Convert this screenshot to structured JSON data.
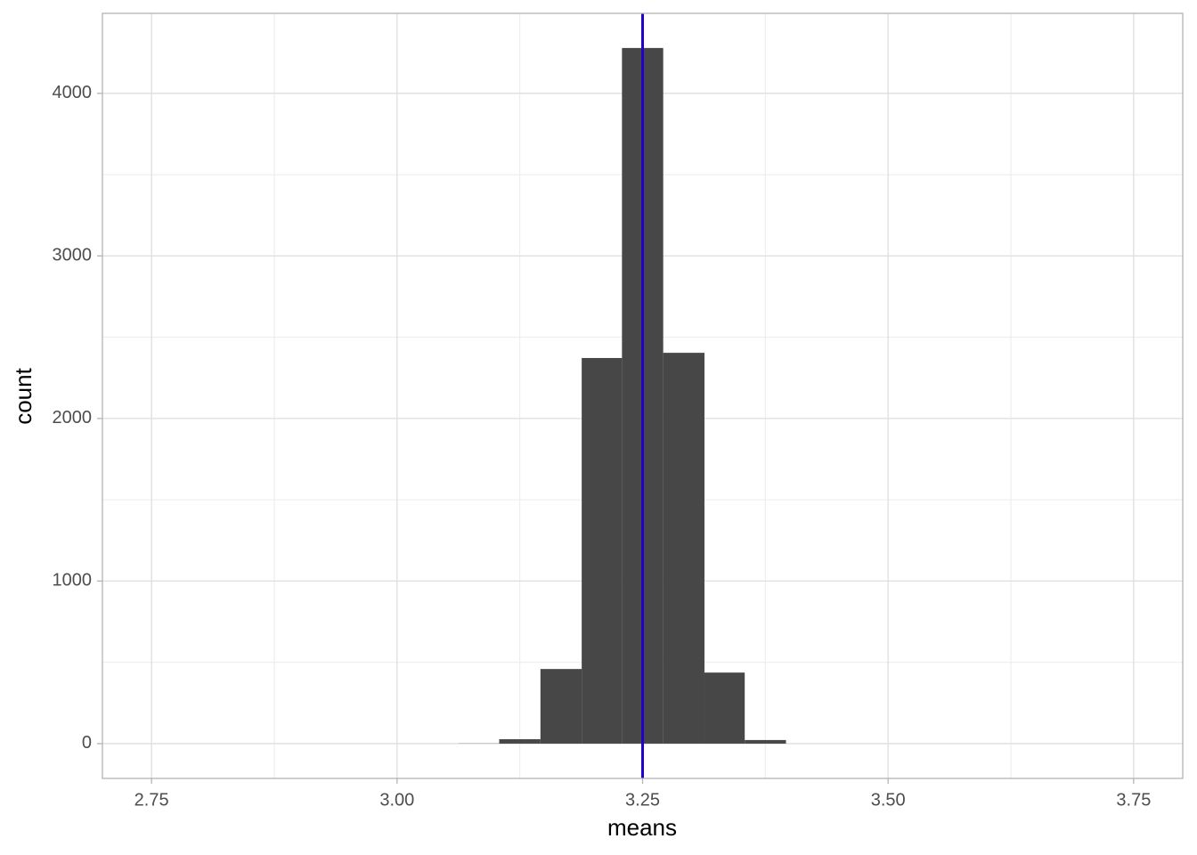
{
  "chart_data": {
    "type": "histogram",
    "x_label": "means",
    "y_label": "count",
    "bins": [
      3.0625,
      3.104,
      3.146,
      3.188,
      3.229,
      3.271,
      3.313,
      3.354,
      3.396
    ],
    "values": [
      1,
      27,
      459,
      2372,
      4279,
      2404,
      437,
      22
    ],
    "color": "#474747",
    "vline": 3.25,
    "vline_color": "#2200cc",
    "xlim": [
      2.7,
      3.8
    ],
    "xticks": [
      2.75,
      {
        "value": 3.0,
        "label": "3.00"
      },
      3.25,
      {
        "value": 3.5,
        "label": "3.50"
      },
      3.75
    ],
    "ylim": [
      -214,
      4492
    ],
    "yticks": [
      0,
      1000,
      2000,
      3000,
      4000
    ],
    "grid": true
  }
}
